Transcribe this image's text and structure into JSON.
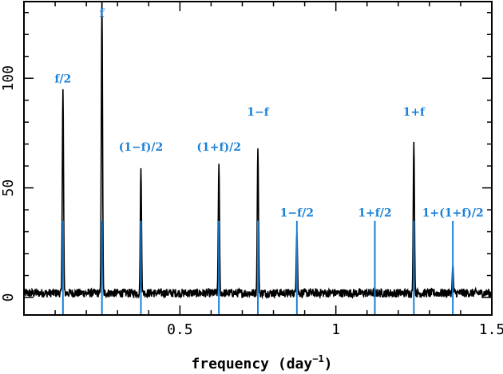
{
  "chart_data": {
    "type": "line",
    "title": "",
    "xlabel": "frequency",
    "xlabel_unit_base": "(day",
    "xlabel_unit_exp": "−1",
    "xlabel_unit_close": ")",
    "ylabel": "",
    "xlim": [
      0.0,
      1.5
    ],
    "ylim": [
      -8,
      135
    ],
    "x_ticks": [
      0.5,
      1,
      1.5
    ],
    "x_tick_labels": [
      "0.5",
      "1",
      "1.5"
    ],
    "y_ticks": [
      0,
      50,
      100
    ],
    "y_tick_labels": [
      "0",
      "50",
      "100"
    ],
    "grid": false,
    "series": [
      {
        "color": "#000000",
        "style": "power-spectrum",
        "noise_baseline": 2,
        "peaks": [
          {
            "x": 0.125,
            "y": 95
          },
          {
            "x": 0.25,
            "y": 135
          },
          {
            "x": 0.375,
            "y": 59
          },
          {
            "x": 0.625,
            "y": 61
          },
          {
            "x": 0.75,
            "y": 68
          },
          {
            "x": 0.875,
            "y": 30
          },
          {
            "x": 1.125,
            "y": 3
          },
          {
            "x": 1.25,
            "y": 71
          },
          {
            "x": 1.375,
            "y": 15
          }
        ]
      }
    ],
    "marker_lines": {
      "color": "#1a80d8",
      "top": 35,
      "x": [
        0.125,
        0.25,
        0.375,
        0.625,
        0.75,
        0.875,
        1.125,
        1.25,
        1.375
      ]
    },
    "annotations": [
      {
        "text": "f/2",
        "x": 0.125,
        "y": 98
      },
      {
        "text": "f",
        "x": 0.25,
        "y": 128
      },
      {
        "text": "(1−f)/2",
        "x": 0.375,
        "y": 67
      },
      {
        "text": "(1+f)/2",
        "x": 0.625,
        "y": 67
      },
      {
        "text": "1−f",
        "x": 0.75,
        "y": 83
      },
      {
        "text": "1−f/2",
        "x": 0.875,
        "y": 37
      },
      {
        "text": "1+f/2",
        "x": 1.125,
        "y": 37
      },
      {
        "text": "1+f",
        "x": 1.25,
        "y": 83
      },
      {
        "text": "1+(1+f)/2",
        "x": 1.375,
        "y": 37
      }
    ],
    "colors": {
      "spectrum": "#000000",
      "markers": "#1a80d8",
      "axes": "#000000"
    }
  }
}
